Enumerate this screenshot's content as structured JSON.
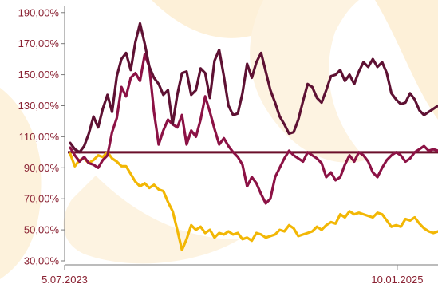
{
  "chart_data": {
    "type": "line",
    "title": "",
    "xlabel": "",
    "ylabel": "",
    "y_tick_labels": [
      "30,00%",
      "50,00%",
      "70,00%",
      "90,00%",
      "110,00%",
      "130,00%",
      "150,00%",
      "170,00%",
      "190,00%"
    ],
    "y_ticks": [
      30,
      50,
      70,
      90,
      110,
      130,
      150,
      170,
      190
    ],
    "ylim": [
      30,
      194
    ],
    "x_tick_labels": [
      "5.07.2023",
      "10.01.2025"
    ],
    "x_tick_positions": [
      0,
      0.8985
    ],
    "grid": false,
    "legend": "none",
    "reference_line": {
      "value": 100,
      "color": "#6b0f2a"
    },
    "series": [
      {
        "color": "#5e1133",
        "values": [
          106,
          102,
          100,
          104,
          112,
          123,
          116,
          128,
          137,
          126,
          149,
          160,
          164,
          153,
          171,
          183,
          170,
          155,
          148,
          144,
          137,
          140,
          118,
          137,
          151,
          152,
          137,
          140,
          154,
          151,
          135,
          159,
          166,
          149,
          130,
          124,
          125,
          138,
          157,
          148,
          158,
          164,
          152,
          140,
          132,
          123,
          118,
          112,
          113,
          121,
          133,
          144,
          142,
          135,
          132,
          140,
          149,
          150,
          153,
          146,
          150,
          144,
          152,
          158,
          155,
          160,
          155,
          158,
          151,
          138,
          134,
          131,
          132,
          138,
          134,
          127,
          124,
          126,
          128,
          130
        ]
      },
      {
        "color": "#8c1245",
        "values": [
          103,
          98,
          94,
          97,
          93,
          92,
          90,
          95,
          98,
          113,
          122,
          142,
          136,
          148,
          151,
          146,
          163,
          155,
          126,
          105,
          114,
          121,
          118,
          116,
          124,
          105,
          114,
          110,
          121,
          136,
          126,
          115,
          105,
          109,
          104,
          100,
          97,
          92,
          78,
          84,
          80,
          73,
          67,
          70,
          84,
          90,
          96,
          101,
          98,
          96,
          94,
          100,
          98,
          96,
          93,
          84,
          87,
          82,
          84,
          92,
          98,
          94,
          100,
          98,
          94,
          87,
          84,
          90,
          95,
          98,
          100,
          98,
          94,
          96,
          100,
          102,
          104,
          101,
          102,
          101
        ]
      },
      {
        "color": "#f2b705",
        "values": [
          99,
          91,
          95,
          96,
          93,
          95,
          98,
          97,
          100,
          96,
          94,
          91,
          91,
          86,
          81,
          78,
          80,
          77,
          79,
          76,
          75,
          68,
          62,
          50,
          37,
          44,
          53,
          50,
          52,
          48,
          50,
          45,
          48,
          47,
          49,
          47,
          48,
          44,
          45,
          43,
          48,
          47,
          45,
          46,
          47,
          50,
          49,
          53,
          51,
          46,
          47,
          48,
          49,
          52,
          50,
          53,
          55,
          54,
          60,
          58,
          62,
          60,
          61,
          60,
          59,
          58,
          61,
          60,
          56,
          52,
          53,
          52,
          57,
          56,
          58,
          54,
          51,
          49,
          48,
          49
        ]
      }
    ]
  }
}
